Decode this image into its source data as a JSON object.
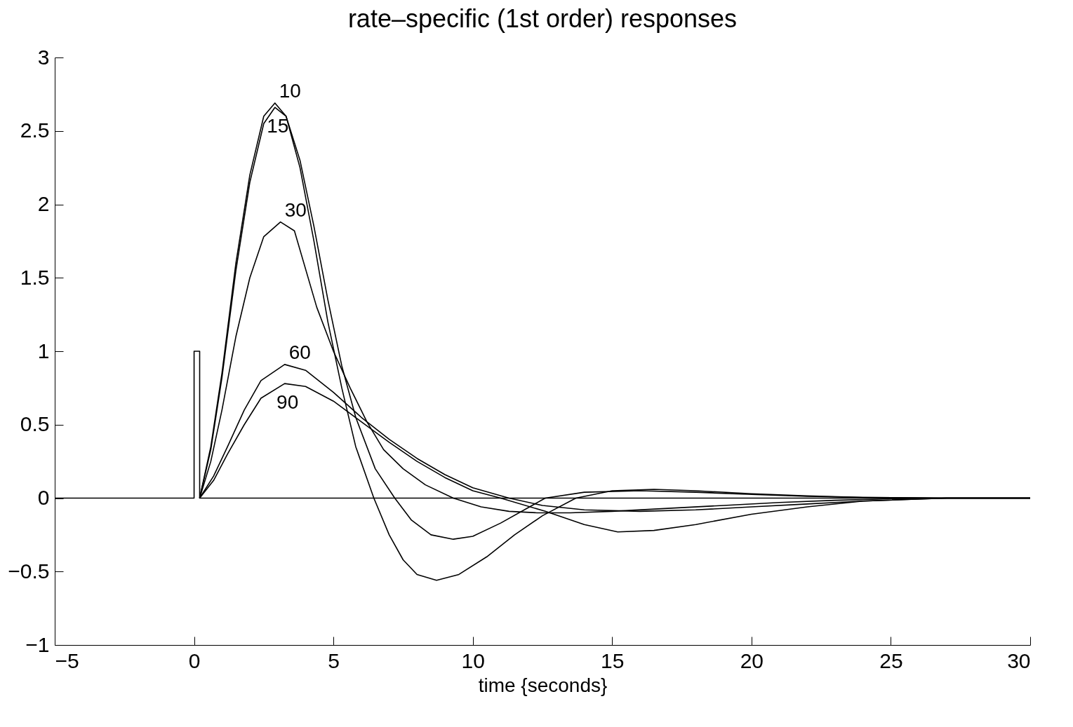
{
  "chart_data": {
    "type": "line",
    "title": "rate–specific (1st order) responses",
    "xlabel": "time {seconds}",
    "xlim": [
      -5,
      30
    ],
    "xticks": [
      -5,
      0,
      5,
      10,
      15,
      20,
      25,
      30
    ],
    "ylim": [
      -1,
      3
    ],
    "yticks": [
      -1,
      -0.5,
      0,
      0.5,
      1,
      1.5,
      2,
      2.5,
      3
    ],
    "grid": false,
    "legend": false,
    "marker": "none",
    "line_style": "solid",
    "series": [
      {
        "color": "#000000",
        "x": [
          -5,
          0,
          0,
          0.2,
          0.2,
          30
        ],
        "values": [
          0,
          0,
          1,
          1,
          0,
          0
        ]
      },
      {
        "name": "10",
        "color": "#000000",
        "x": [
          0.2,
          0.6,
          1,
          1.5,
          2,
          2.5,
          2.9,
          3.3,
          3.8,
          4.3,
          4.8,
          5.3,
          5.8,
          6.45,
          7,
          7.5,
          8,
          8.7,
          9.5,
          10.5,
          11.5,
          12.5,
          13.7,
          15,
          16.5,
          18,
          20,
          22,
          24,
          27,
          30
        ],
        "values": [
          0,
          0.35,
          0.85,
          1.6,
          2.2,
          2.6,
          2.69,
          2.6,
          2.25,
          1.75,
          1.2,
          0.75,
          0.35,
          0,
          -0.25,
          -0.42,
          -0.52,
          -0.56,
          -0.52,
          -0.4,
          -0.25,
          -0.12,
          0,
          0.05,
          0.06,
          0.05,
          0.03,
          0.015,
          0.005,
          0,
          0
        ]
      },
      {
        "name": "15",
        "color": "#000000",
        "x": [
          0.2,
          0.6,
          1,
          1.5,
          2,
          2.5,
          2.9,
          3.3,
          3.8,
          4.3,
          4.8,
          5.3,
          5.8,
          6.5,
          7.2,
          7.8,
          8.5,
          9.3,
          10,
          11,
          12.6,
          14,
          16,
          18,
          20,
          22,
          24,
          27,
          30
        ],
        "values": [
          0,
          0.33,
          0.82,
          1.55,
          2.15,
          2.55,
          2.66,
          2.6,
          2.3,
          1.85,
          1.35,
          0.9,
          0.55,
          0.2,
          0,
          -0.15,
          -0.25,
          -0.28,
          -0.26,
          -0.17,
          0,
          0.04,
          0.05,
          0.04,
          0.025,
          0.012,
          0.005,
          0,
          0
        ]
      },
      {
        "name": "30",
        "color": "#000000",
        "x": [
          0.2,
          0.6,
          1,
          1.5,
          2,
          2.5,
          3.1,
          3.6,
          4.4,
          5,
          5.6,
          6.2,
          6.8,
          7.5,
          8.3,
          9.3,
          10.3,
          11.3,
          12.3,
          13.5,
          15,
          17,
          19,
          21,
          23,
          25,
          27,
          30
        ],
        "values": [
          0,
          0.25,
          0.6,
          1.1,
          1.5,
          1.78,
          1.88,
          1.82,
          1.3,
          1.0,
          0.75,
          0.52,
          0.33,
          0.2,
          0.09,
          0,
          -0.06,
          -0.09,
          -0.1,
          -0.1,
          -0.09,
          -0.07,
          -0.05,
          -0.03,
          -0.015,
          -0.005,
          0,
          0
        ]
      },
      {
        "name": "60",
        "color": "#000000",
        "x": [
          0.2,
          0.7,
          1.2,
          1.8,
          2.4,
          3.25,
          4,
          5,
          6,
          7,
          8,
          9,
          10,
          11.3,
          12.5,
          14,
          16,
          18,
          20,
          22,
          24,
          27,
          30
        ],
        "values": [
          0,
          0.15,
          0.35,
          0.6,
          0.8,
          0.91,
          0.87,
          0.72,
          0.55,
          0.4,
          0.27,
          0.16,
          0.07,
          0,
          -0.05,
          -0.08,
          -0.09,
          -0.08,
          -0.06,
          -0.04,
          -0.02,
          0,
          0
        ]
      },
      {
        "name": "90",
        "color": "#000000",
        "x": [
          0.2,
          0.7,
          1.2,
          1.8,
          2.4,
          3.25,
          4,
          5,
          6,
          7,
          8,
          9,
          10,
          11,
          12.6,
          14,
          15.2,
          16.5,
          18,
          20,
          22,
          24,
          27,
          30
        ],
        "values": [
          0,
          0.12,
          0.3,
          0.5,
          0.68,
          0.78,
          0.76,
          0.66,
          0.52,
          0.38,
          0.25,
          0.14,
          0.05,
          0,
          -0.09,
          -0.18,
          -0.23,
          -0.22,
          -0.18,
          -0.11,
          -0.06,
          -0.02,
          0,
          0
        ]
      }
    ]
  }
}
